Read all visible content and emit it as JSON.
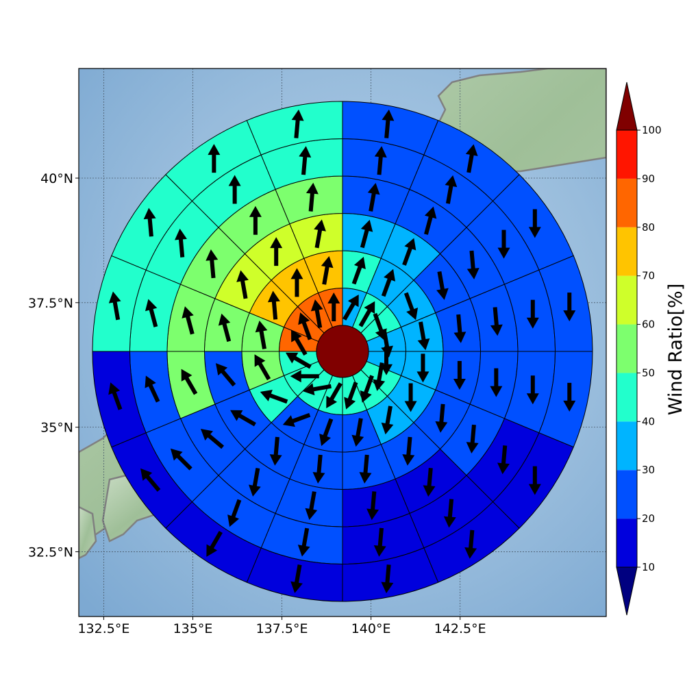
{
  "chart_data": {
    "type": "polar-sector-map",
    "x_ticks": [
      "132.5°E",
      "135°E",
      "137.5°E",
      "140°E",
      "142.5°E"
    ],
    "x_tick_values": [
      132.5,
      135,
      137.5,
      140,
      142.5
    ],
    "y_ticks": [
      "40°N",
      "37.5°N",
      "35°N",
      "32.5°N"
    ],
    "y_tick_values": [
      40,
      37.5,
      35,
      32.5
    ],
    "xlim": [
      131.8,
      146.6
    ],
    "ylim": [
      31.2,
      42.2
    ],
    "center_value_color": "#800000",
    "rings": [
      1,
      2,
      3,
      4,
      5,
      6
    ],
    "sectors": 16,
    "sector_start": "north, clockwise",
    "ring_values": [
      [
        35,
        45,
        45,
        35,
        35,
        45,
        45,
        45,
        45,
        45,
        45,
        45,
        85,
        85,
        85,
        85
      ],
      [
        45,
        35,
        35,
        35,
        35,
        35,
        35,
        25,
        25,
        25,
        45,
        55,
        55,
        75,
        75,
        75
      ],
      [
        35,
        35,
        25,
        25,
        25,
        25,
        25,
        25,
        25,
        25,
        25,
        25,
        55,
        65,
        65,
        65
      ],
      [
        25,
        25,
        25,
        25,
        25,
        25,
        15,
        15,
        25,
        25,
        25,
        55,
        55,
        55,
        55,
        55
      ],
      [
        25,
        25,
        25,
        25,
        25,
        15,
        15,
        15,
        25,
        25,
        25,
        25,
        45,
        45,
        45,
        45
      ],
      [
        25,
        25,
        25,
        25,
        25,
        15,
        15,
        15,
        15,
        15,
        15,
        15,
        45,
        45,
        45,
        45
      ]
    ],
    "arrow_directions_deg": [
      [
        30,
        30,
        160,
        170,
        180,
        190,
        200,
        200,
        210,
        260,
        270,
        300,
        330,
        340,
        350,
        0
      ],
      [
        20,
        20,
        160,
        170,
        180,
        180,
        190,
        190,
        200,
        250,
        290,
        330,
        350,
        355,
        0,
        10
      ],
      [
        15,
        20,
        170,
        175,
        180,
        185,
        185,
        185,
        185,
        185,
        300,
        320,
        345,
        350,
        0,
        10
      ],
      [
        10,
        15,
        175,
        175,
        180,
        185,
        185,
        185,
        190,
        190,
        310,
        330,
        345,
        355,
        0,
        5
      ],
      [
        5,
        10,
        180,
        180,
        180,
        185,
        185,
        185,
        190,
        200,
        315,
        335,
        345,
        355,
        0,
        5
      ],
      [
        5,
        10,
        180,
        180,
        180,
        180,
        185,
        185,
        190,
        210,
        320,
        340,
        350,
        355,
        0,
        5
      ]
    ],
    "colorbar": {
      "label": "Wind Ratio[%]",
      "ticks": [
        "10",
        "20",
        "30",
        "40",
        "50",
        "60",
        "70",
        "80",
        "90",
        "100"
      ],
      "levels": [
        10,
        20,
        30,
        40,
        50,
        60,
        70,
        80,
        90,
        100
      ],
      "colors": [
        "#0000dd",
        "#0050ff",
        "#00b4ff",
        "#22ffcc",
        "#7dff6e",
        "#cfff2a",
        "#ffc400",
        "#ff6600",
        "#ff1500"
      ],
      "under_color": "#000080",
      "over_color": "#800000",
      "extend": "both"
    },
    "grid": true
  }
}
